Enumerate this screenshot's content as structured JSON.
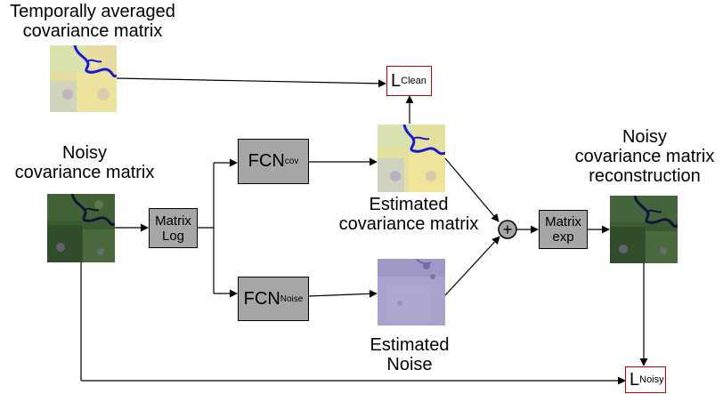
{
  "labels": {
    "temporal_line1": "Temporally averaged",
    "temporal_line2": "covariance matrix",
    "noisy_line1": "Noisy",
    "noisy_line2": "covariance matrix",
    "est_cov_line1": "Estimated",
    "est_cov_line2": "covariance matrix",
    "est_noise_line1": "Estimated",
    "est_noise_line2": "Noise",
    "recon_line1": "Noisy",
    "recon_line2": "covariance matrix",
    "recon_line3": "reconstruction"
  },
  "boxes": {
    "matrix_log_line1": "Matrix",
    "matrix_log_line2": "Log",
    "matrix_exp_line1": "Matrix",
    "matrix_exp_line2": "exp",
    "fcn_cov_main": "FCN",
    "fcn_cov_sub": "cov",
    "fcn_noise_main": "FCN",
    "fcn_noise_sub": "Noise"
  },
  "losses": {
    "clean_main": "L",
    "clean_sub": "Clean",
    "noisy_main": "L",
    "noisy_sub": "Noisy"
  },
  "sum_symbol": "+",
  "colors": {
    "box_fill": "#a6a6a6",
    "loss_border": "#c00000",
    "sum_fill": "#a6a6a6",
    "river": "#1a1ad0"
  }
}
